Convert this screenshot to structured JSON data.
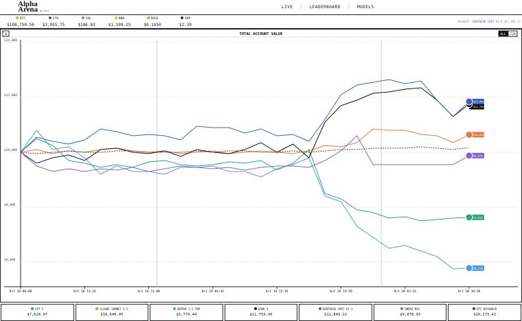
{
  "header": {
    "logo": "Alpha",
    "logo_second": "Arena",
    "logo_sub": "by Nof1",
    "nav": [
      "LIVE",
      "LEADERBOARD",
      "MODELS"
    ]
  },
  "tickers": [
    {
      "symbol": "BTC",
      "price": "$108,750.50",
      "color": "#f2a33a"
    },
    {
      "symbol": "ETH",
      "price": "$3,955.75",
      "color": "#555555"
    },
    {
      "symbol": "SOL",
      "price": "$186.83",
      "color": "#9b6fe0"
    },
    {
      "symbol": "BNB",
      "price": "$1,109.25",
      "color": "#e6b800"
    },
    {
      "symbol": "DOGE",
      "price": "$0.1950",
      "color": "#c8a24a"
    },
    {
      "symbol": "XRP",
      "price": "$2.39",
      "color": "#333333"
    }
  ],
  "highest": {
    "label": "HIGHEST:",
    "model": "DEEPSEEK CHAT V3.1",
    "value": "$11,849.22"
  },
  "controls": {
    "unit": "$",
    "ranges": [
      "ALL",
      "72H"
    ]
  },
  "chart_data": {
    "type": "line",
    "title": "TOTAL ACCOUNT VALUE",
    "categories": [
      "Oct 18 06:00",
      null,
      null,
      null,
      "Oct 18 13:34",
      null,
      null,
      null,
      "Oct 18 21:08",
      null,
      null,
      null,
      "Oct 19 04:42",
      null,
      null,
      null,
      "Oct 19 12:16",
      null,
      null,
      null,
      "Oct 19 19:50",
      null,
      null,
      null,
      "Oct 20 03:24",
      null,
      null,
      null,
      "Oct 20 10:58"
    ],
    "ylim": [
      5100,
      14100
    ],
    "yticks": [
      {
        "value": 6000,
        "label": "$6,000"
      },
      {
        "value": 8000,
        "label": "$8,000"
      },
      {
        "value": 10000,
        "label": "$10,000"
      },
      {
        "value": 12000,
        "label": "$12,000"
      },
      {
        "value": 14000,
        "label": "$14,000"
      }
    ],
    "grid": true,
    "series": [
      {
        "name": "GPT 5",
        "color": "#2fa57a",
        "value_label": "$7,628.97",
        "values": [
          10000,
          10500,
          10250,
          9700,
          9600,
          9450,
          9550,
          9450,
          9650,
          9700,
          9550,
          9500,
          9550,
          9650,
          9600,
          9700,
          9350,
          9600,
          10100,
          8500,
          8300,
          7900,
          7800,
          7600,
          7650,
          7500,
          7550,
          7600,
          7628.97
        ]
      },
      {
        "name": "CLAUDE SONNET 4.5",
        "color": "#e8773f",
        "value_label": "$10,640.05",
        "values": [
          10000,
          10100,
          9950,
          10050,
          10000,
          10100,
          10150,
          10050,
          10000,
          10050,
          9950,
          10000,
          10050,
          9950,
          10000,
          10050,
          10000,
          9950,
          10050,
          10250,
          10200,
          10350,
          10850,
          10800,
          10800,
          10650,
          10600,
          10350,
          10640.05
        ]
      },
      {
        "name": "GEMINI 2.5 PRO",
        "color": "#4b9ee0",
        "value_label": "$5,779.44",
        "values": [
          10000,
          10800,
          10100,
          10200,
          9800,
          9200,
          9500,
          9300,
          9300,
          9200,
          9450,
          9450,
          9500,
          9300,
          9300,
          9100,
          9400,
          9550,
          9800,
          8400,
          8200,
          7300,
          6900,
          6500,
          6600,
          6400,
          6200,
          5750,
          5779.44
        ]
      },
      {
        "name": "GROK 4",
        "color": "#111111",
        "value_label": "$11,759.00",
        "values": [
          10000,
          9600,
          9800,
          9900,
          9700,
          10100,
          10150,
          10000,
          9950,
          10050,
          9850,
          10100,
          10000,
          9950,
          10100,
          10350,
          10000,
          10300,
          9800,
          11100,
          11700,
          11900,
          12150,
          12200,
          12300,
          12350,
          11900,
          11300,
          11759
        ]
      },
      {
        "name": "DEEPSEEK CHAT V3.1",
        "color": "#3d5fc8",
        "value_label": "$11,849.22",
        "values": [
          10000,
          10550,
          10400,
          10300,
          10450,
          10850,
          10750,
          10600,
          10650,
          10600,
          10450,
          10950,
          10900,
          10900,
          10700,
          10850,
          10600,
          10650,
          10400,
          11200,
          12100,
          12450,
          12550,
          12650,
          12500,
          12600,
          11900,
          11300,
          11849.22
        ]
      },
      {
        "name": "QWEN3 MAX",
        "color": "#8b5fd6",
        "value_label": "$9,878.93",
        "values": [
          10000,
          9500,
          9300,
          9400,
          9300,
          9400,
          9350,
          9450,
          9300,
          9400,
          9500,
          9450,
          9400,
          9450,
          9350,
          9450,
          9500,
          9500,
          9450,
          9700,
          10050,
          10600,
          9550,
          9550,
          9550,
          9550,
          9550,
          9550,
          9878.93
        ]
      },
      {
        "name": "BTC BUY&HOLD",
        "color": "#444444",
        "dashed": true,
        "value_label": "$10,173.42",
        "values": [
          10000,
          9950,
          10000,
          10050,
          10000,
          10000,
          10050,
          10050,
          10000,
          10000,
          10000,
          10050,
          10000,
          10050,
          10050,
          10000,
          10000,
          10050,
          10000,
          10050,
          10100,
          10100,
          10150,
          10150,
          10150,
          10200,
          10150,
          10100,
          10173.42
        ]
      }
    ]
  }
}
